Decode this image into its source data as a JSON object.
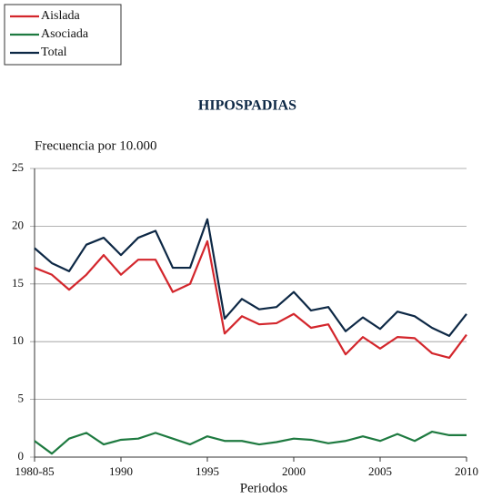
{
  "chart_data": {
    "type": "line",
    "title": "HIPOSPADIAS",
    "ylabel": "Frecuencia por 10.000",
    "xlabel": "Periodos",
    "categories": [
      "1980-85",
      null,
      null,
      null,
      null,
      "1990",
      null,
      null,
      null,
      null,
      "1995",
      null,
      null,
      null,
      null,
      "2000",
      null,
      null,
      null,
      null,
      "2005",
      null,
      null,
      null,
      null,
      "2010"
    ],
    "series": [
      {
        "name": "Aislada",
        "color": "#d3262c",
        "values": [
          16.4,
          15.8,
          14.5,
          15.8,
          17.5,
          15.8,
          17.1,
          17.1,
          14.3,
          15.0,
          18.7,
          10.7,
          12.2,
          11.5,
          11.6,
          12.4,
          11.2,
          11.5,
          8.9,
          10.4,
          9.4,
          10.4,
          10.3,
          9.0,
          8.6,
          10.6
        ]
      },
      {
        "name": "Asociada",
        "color": "#1e7a40",
        "values": [
          1.4,
          0.3,
          1.6,
          2.1,
          1.1,
          1.5,
          1.6,
          2.1,
          1.6,
          1.1,
          1.8,
          1.4,
          1.4,
          1.1,
          1.3,
          1.6,
          1.5,
          1.2,
          1.4,
          1.8,
          1.4,
          2.0,
          1.4,
          2.2,
          1.9,
          1.9
        ]
      },
      {
        "name": "Total",
        "color": "#0d2845",
        "values": [
          18.1,
          16.8,
          16.1,
          18.4,
          19.0,
          17.5,
          19.0,
          19.6,
          16.4,
          16.4,
          20.6,
          12.0,
          13.7,
          12.8,
          13.0,
          14.3,
          12.7,
          13.0,
          10.9,
          12.1,
          11.1,
          12.6,
          12.2,
          11.2,
          10.5,
          12.4
        ]
      }
    ],
    "ylim": [
      0,
      25
    ],
    "yticks": [
      0,
      5,
      10,
      15,
      20,
      25
    ],
    "grid": true,
    "legend": "top-left"
  }
}
